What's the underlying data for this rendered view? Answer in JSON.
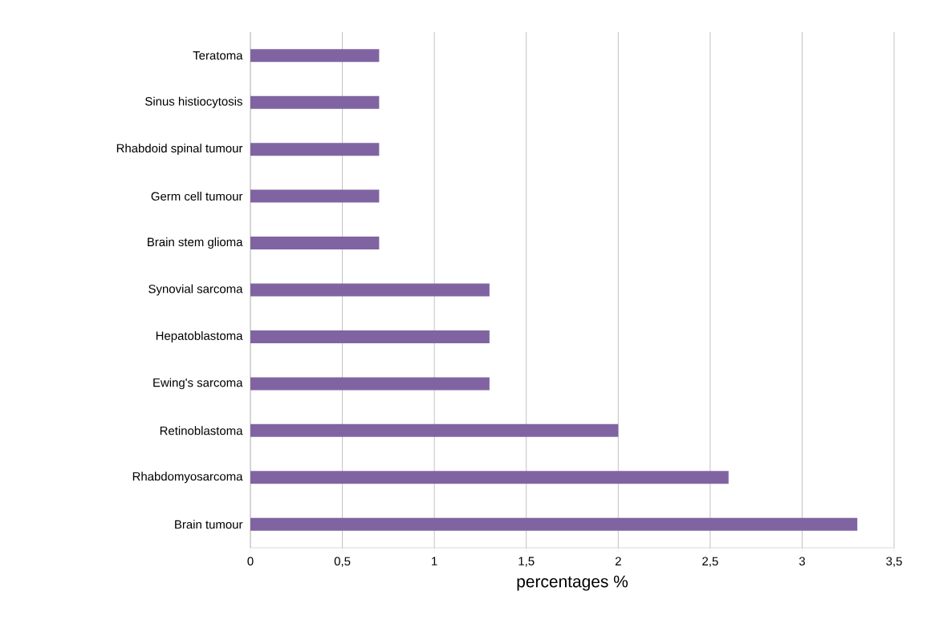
{
  "chart_data": {
    "type": "bar",
    "orientation": "horizontal",
    "xlabel": "percentages %",
    "categories": [
      "Teratoma",
      "Sinus histiocytosis",
      "Rhabdoid spinal tumour",
      "Germ cell tumour",
      "Brain stem glioma",
      "Synovial sarcoma",
      "Hepatoblastoma",
      "Ewing's sarcoma",
      "Retinoblastoma",
      "Rhabdomyosarcoma",
      "Brain tumour"
    ],
    "values": [
      0.7,
      0.7,
      0.7,
      0.7,
      0.7,
      1.3,
      1.3,
      1.3,
      2.0,
      2.6,
      3.3
    ],
    "color": "#8064a2",
    "xlim": [
      0,
      3.5
    ],
    "xticks": [
      0,
      {
        "value": 0.5,
        "label": "0,5"
      },
      1,
      {
        "value": 1.5,
        "label": "1,5"
      },
      2,
      {
        "value": 2.5,
        "label": "2,5"
      },
      3,
      {
        "value": 3.5,
        "label": "3,5"
      }
    ],
    "grid": "x"
  }
}
